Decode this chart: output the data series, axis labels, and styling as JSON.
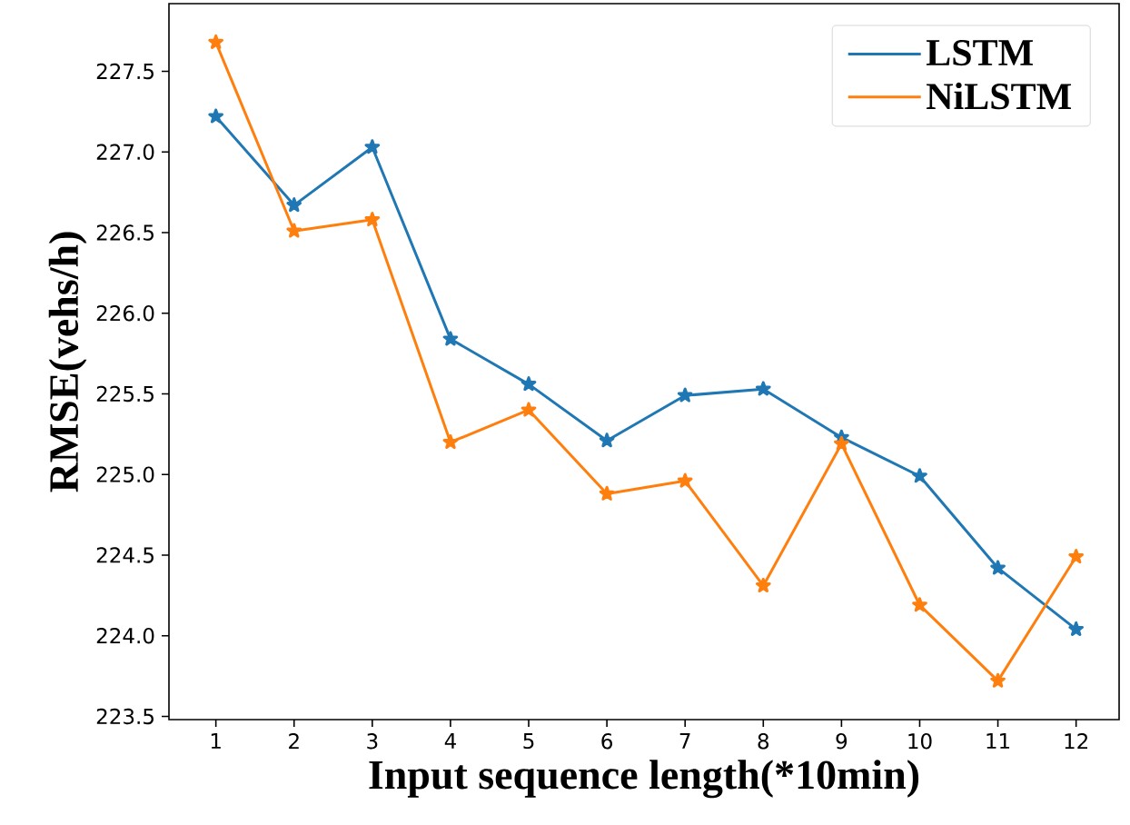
{
  "chart_data": {
    "type": "line",
    "xlabel": "Input sequence length(*10min)",
    "ylabel": "RMSE(vehs/h)",
    "x": [
      1,
      2,
      3,
      4,
      5,
      6,
      7,
      8,
      9,
      10,
      11,
      12
    ],
    "series": [
      {
        "name": "LSTM",
        "color": "#1f77b4",
        "values": [
          227.22,
          226.67,
          227.03,
          225.84,
          225.56,
          225.21,
          225.49,
          225.53,
          225.23,
          224.99,
          224.42,
          224.04
        ]
      },
      {
        "name": "NiLSTM",
        "color": "#ff7f0e",
        "values": [
          227.68,
          226.51,
          226.58,
          225.2,
          225.4,
          224.88,
          224.96,
          224.31,
          225.19,
          224.19,
          223.72,
          224.49
        ]
      }
    ],
    "xlim": [
      0.4,
      12.55
    ],
    "ylim": [
      223.48,
      227.92
    ],
    "xticks": [
      1,
      2,
      3,
      4,
      5,
      6,
      7,
      8,
      9,
      10,
      11,
      12
    ],
    "yticks": [
      {
        "value": 223.5,
        "label": "223.5"
      },
      {
        "value": 224.0,
        "label": "224.0"
      },
      {
        "value": 224.5,
        "label": "224.5"
      },
      {
        "value": 225.0,
        "label": "225.0"
      },
      {
        "value": 225.5,
        "label": "225.5"
      },
      {
        "value": 226.0,
        "label": "226.0"
      },
      {
        "value": 226.5,
        "label": "226.5"
      },
      {
        "value": 227.0,
        "label": "227.0"
      },
      {
        "value": 227.5,
        "label": "227.5"
      }
    ],
    "legend": "top right",
    "marker": "star",
    "line_style": "solid",
    "grid": false
  }
}
